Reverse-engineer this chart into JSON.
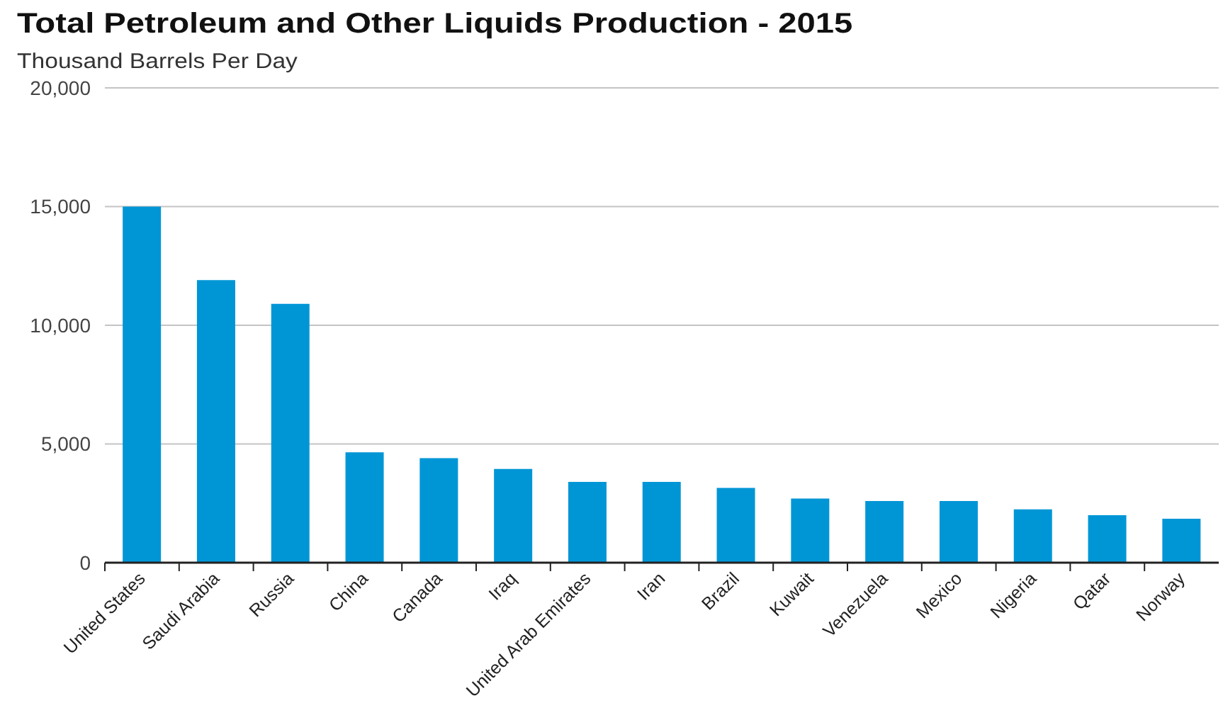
{
  "chart_data": {
    "type": "bar",
    "title": "Total Petroleum and Other Liquids Production - 2015",
    "subtitle": "Thousand Barrels Per Day",
    "categories": [
      "United States",
      "Saudi Arabia",
      "Russia",
      "China",
      "Canada",
      "Iraq",
      "United Arab Emirates",
      "Iran",
      "Brazil",
      "Kuwait",
      "Venezuela",
      "Mexico",
      "Nigeria",
      "Qatar",
      "Norway"
    ],
    "values": [
      15000,
      11900,
      10900,
      4650,
      4400,
      3950,
      3400,
      3400,
      3150,
      2700,
      2600,
      2600,
      2250,
      2000,
      1850
    ],
    "color": "#0096d6",
    "ylim": [
      0,
      20000
    ],
    "yticks": [
      {
        "value": 0,
        "label": "0"
      },
      {
        "value": 5000,
        "label": "5,000"
      },
      {
        "value": 10000,
        "label": "10,000"
      },
      {
        "value": 15000,
        "label": "15,000"
      },
      {
        "value": 20000,
        "label": "20,000"
      }
    ],
    "grid": "y"
  }
}
